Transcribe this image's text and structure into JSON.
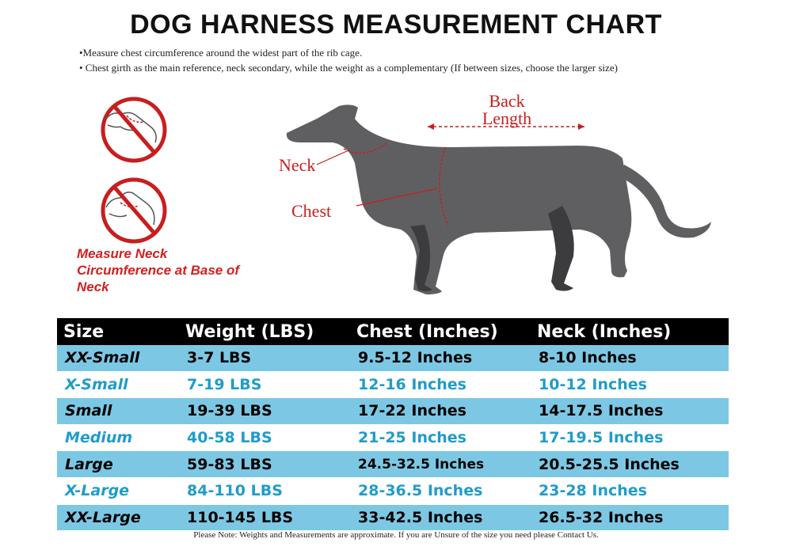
{
  "title": "DOG HARNESS MEASUREMENT CHART",
  "notes": [
    "•Measure chest circumference around the widest part of the rib cage.",
    "• Chest girth as the main reference, neck secondary, while the weight as a complementary (If between sizes, choose the larger size)"
  ],
  "illustration": {
    "measure_neck_text": "Measure Neck Circumference at Base of Neck",
    "labels": {
      "back_length": "Back Length",
      "neck": "Neck",
      "chest": "Chest"
    },
    "colors": {
      "accent_red": "#d22020",
      "dog_gray": "#5f5f62"
    }
  },
  "table": {
    "headers": [
      "Size",
      "Weight (LBS)",
      "Chest (Inches)",
      "Neck (Inches)"
    ],
    "rows": [
      {
        "size": "XX-Small",
        "weight": "3-7 LBS",
        "chest": "9.5-12 Inches",
        "neck": "8-10 Inches"
      },
      {
        "size": "X-Small",
        "weight": "7-19 LBS",
        "chest": "12-16 Inches",
        "neck": "10-12 Inches"
      },
      {
        "size": "Small",
        "weight": "19-39 LBS",
        "chest": "17-22 Inches",
        "neck": "14-17.5 Inches"
      },
      {
        "size": "Medium",
        "weight": "40-58 LBS",
        "chest": "21-25 Inches",
        "neck": "17-19.5 Inches"
      },
      {
        "size": "Large",
        "weight": "59-83 LBS",
        "chest": "24.5-32.5 Inches",
        "neck": "20.5-25.5 Inches"
      },
      {
        "size": "X-Large",
        "weight": "84-110 LBS",
        "chest": "28-36.5 Inches",
        "neck": "23-28 Inches"
      },
      {
        "size": "XX-Large",
        "weight": "110-145 LBS",
        "chest": "33-42.5 Inches",
        "neck": "26.5-32 Inches"
      }
    ],
    "colors": {
      "header_bg": "#000000",
      "stripe_blue": "#7cc8e4",
      "alt_text_blue": "#1f9cc9"
    }
  },
  "footer": "Please Note: Weights and Measurements are approximate. If you are Unsure of the size you need please Contact Us."
}
